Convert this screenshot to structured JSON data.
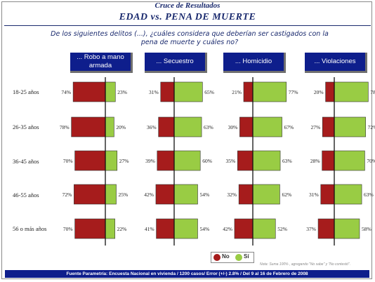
{
  "header": {
    "subtitle": "Cruce de Resultados",
    "title": "EDAD vs. PENA DE MUERTE",
    "question": "De los siguientes delitos (...), ¿cuáles considera que deberían ser castigados con la pena de muerte y cuáles no?"
  },
  "legend": {
    "no_label": "No",
    "si_label": "Sí"
  },
  "footer": {
    "note": "Nota: Suma 100% , agregando \"No sabe\" y \"No contestó\".",
    "source": "Fuente Parametría: Encuesta Nacional en vivienda / 1200 casos/ Error (+/-) 2.8% / Del 9 al 16 de Febrero de 2008"
  },
  "colors": {
    "no": "#a61c1c",
    "si": "#99cc44",
    "header_bg": "#0e1e8c"
  },
  "chart_data": {
    "type": "bar",
    "orientation": "horizontal-diverging",
    "unit": "%",
    "categories": [
      "18-25 años",
      "26-35 años",
      "36-45 años",
      "46-55 años",
      "56 o más años"
    ],
    "panels": [
      {
        "label": "... Robo a mano armada",
        "series": [
          {
            "name": "No",
            "values": [
              74,
              78,
              70,
              72,
              70
            ]
          },
          {
            "name": "Sí",
            "values": [
              23,
              20,
              27,
              25,
              22
            ]
          }
        ]
      },
      {
        "label": "... Secuestro",
        "series": [
          {
            "name": "No",
            "values": [
              31,
              36,
              39,
              42,
              41
            ]
          },
          {
            "name": "Sí",
            "values": [
              65,
              63,
              60,
              54,
              54
            ]
          }
        ]
      },
      {
        "label": "... Homicidio",
        "series": [
          {
            "name": "No",
            "values": [
              21,
              30,
              35,
              32,
              42
            ]
          },
          {
            "name": "Sí",
            "values": [
              77,
              67,
              63,
              62,
              52
            ]
          }
        ]
      },
      {
        "label": "... Violaciones",
        "series": [
          {
            "name": "No",
            "values": [
              20,
              27,
              28,
              31,
              37
            ]
          },
          {
            "name": "Sí",
            "values": [
              78,
              72,
              70,
              63,
              58
            ]
          }
        ]
      }
    ]
  }
}
